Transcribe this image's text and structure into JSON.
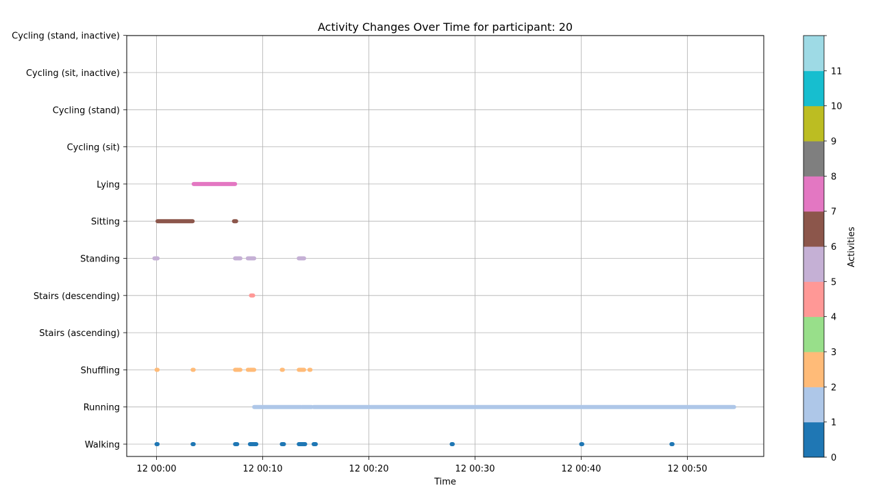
{
  "chart_data": {
    "type": "scatter",
    "title": "Activity Changes Over Time for participant: 20",
    "xlabel": "Time",
    "ylabel": "",
    "x_unit": "minutes after 12 00:00",
    "xlim": [
      -2.8,
      57.2
    ],
    "x_ticks": [
      {
        "value": 0,
        "label": "12 00:00"
      },
      {
        "value": 10,
        "label": "12 00:10"
      },
      {
        "value": 20,
        "label": "12 00:20"
      },
      {
        "value": 30,
        "label": "12 00:30"
      },
      {
        "value": 40,
        "label": "12 00:40"
      },
      {
        "value": 50,
        "label": "12 00:50"
      }
    ],
    "y_categories": [
      "Walking",
      "Running",
      "Shuffling",
      "Stairs (ascending)",
      "Stairs (descending)",
      "Standing",
      "Sitting",
      "Lying",
      "Cycling (sit)",
      "Cycling (stand)",
      "Cycling (sit, inactive)",
      "Cycling (stand, inactive)"
    ],
    "grid": true,
    "colorbar": {
      "label": "Activities",
      "ticks": [
        "0",
        "1",
        "2",
        "3",
        "4",
        "5",
        "6",
        "7",
        "8",
        "9",
        "10",
        "11"
      ],
      "colors": [
        "#1f77b4",
        "#aec7e8",
        "#ffbb78",
        "#98df8a",
        "#ff9896",
        "#c5b0d5",
        "#8c564b",
        "#e377c2",
        "#7f7f7f",
        "#bcbd22",
        "#17becf",
        "#9edae5"
      ]
    },
    "series": [
      {
        "activity": "Walking",
        "code": 0,
        "color": "#1f77b4",
        "segments": [
          [
            0.0,
            0.1
          ],
          [
            3.4,
            3.5
          ],
          [
            7.4,
            7.6
          ],
          [
            8.8,
            9.4
          ],
          [
            11.8,
            12.0
          ],
          [
            13.4,
            14.0
          ],
          [
            14.8,
            15.0
          ],
          [
            27.8,
            27.9
          ],
          [
            40.0,
            40.1
          ],
          [
            48.5,
            48.6
          ]
        ]
      },
      {
        "activity": "Running",
        "code": 1,
        "color": "#aec7e8",
        "segments": [
          [
            9.2,
            13.6
          ],
          [
            13.7,
            14.6
          ],
          [
            14.8,
            54.4
          ]
        ]
      },
      {
        "activity": "Shuffling",
        "code": 2,
        "color": "#ffbb78",
        "segments": [
          [
            0.0,
            0.1
          ],
          [
            3.4,
            3.5
          ],
          [
            7.4,
            7.7
          ],
          [
            7.8,
            7.9
          ],
          [
            8.6,
            8.7
          ],
          [
            8.8,
            9.2
          ],
          [
            11.8,
            11.9
          ],
          [
            13.4,
            13.9
          ],
          [
            14.4,
            14.5
          ]
        ]
      },
      {
        "activity": "Stairs (ascending)",
        "code": 3,
        "color": "#98df8a",
        "segments": []
      },
      {
        "activity": "Stairs (descending)",
        "code": 4,
        "color": "#ff9896",
        "segments": [
          [
            8.9,
            9.1
          ]
        ]
      },
      {
        "activity": "Standing",
        "code": 5,
        "color": "#c5b0d5",
        "segments": [
          [
            -0.2,
            0.1
          ],
          [
            7.4,
            7.6
          ],
          [
            7.7,
            7.9
          ],
          [
            8.6,
            9.2
          ],
          [
            13.4,
            13.9
          ]
        ]
      },
      {
        "activity": "Sitting",
        "code": 6,
        "color": "#8c564b",
        "segments": [
          [
            0.1,
            3.4
          ],
          [
            7.3,
            7.5
          ]
        ]
      },
      {
        "activity": "Lying",
        "code": 7,
        "color": "#e377c2",
        "segments": [
          [
            3.5,
            7.4
          ]
        ]
      },
      {
        "activity": "Cycling (sit)",
        "code": 8,
        "color": "#7f7f7f",
        "segments": []
      },
      {
        "activity": "Cycling (stand)",
        "code": 9,
        "color": "#bcbd22",
        "segments": []
      },
      {
        "activity": "Cycling (sit, inactive)",
        "code": 10,
        "color": "#17becf",
        "segments": []
      },
      {
        "activity": "Cycling (stand, inactive)",
        "code": 11,
        "color": "#9edae5",
        "segments": []
      }
    ]
  }
}
